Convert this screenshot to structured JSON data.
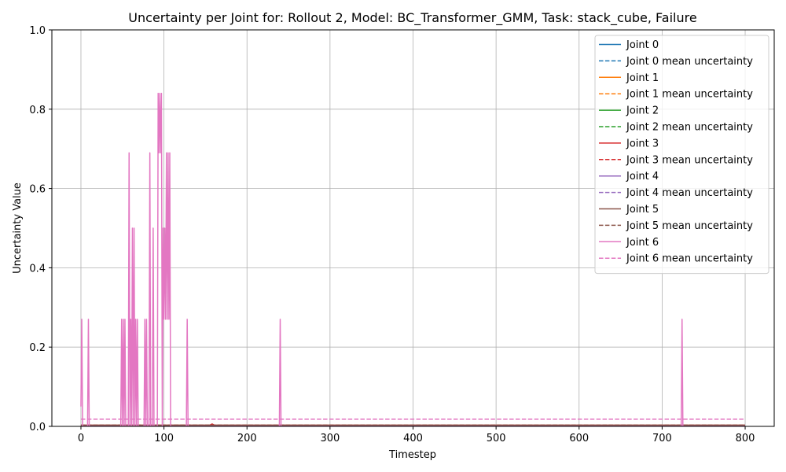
{
  "chart_data": {
    "type": "line",
    "title": "Uncertainty per Joint for: Rollout 2, Model: BC_Transformer_GMM, Task: stack_cube, Failure",
    "xlabel": "Timestep",
    "ylabel": "Uncertainty Value",
    "xlim": [
      -35,
      835
    ],
    "ylim": [
      0,
      1.0
    ],
    "x_ticks": [
      0,
      100,
      200,
      300,
      400,
      500,
      600,
      700,
      800
    ],
    "y_ticks": [
      0.0,
      0.2,
      0.4,
      0.6,
      0.8,
      1.0
    ],
    "x_tick_labels": [
      "0",
      "100",
      "200",
      "300",
      "400",
      "500",
      "600",
      "700",
      "800"
    ],
    "y_tick_labels": [
      "0.0",
      "0.2",
      "0.4",
      "0.6",
      "0.8",
      "1.0"
    ],
    "grid": true,
    "legend_position": "top-right",
    "series": [
      {
        "name": "Joint 0",
        "color": "#1f77b4",
        "style": "solid",
        "points": [
          [
            0,
            0.002
          ],
          [
            800,
            0.002
          ]
        ]
      },
      {
        "name": "Joint 0 mean uncertainty",
        "color": "#1f77b4",
        "style": "dashed",
        "points": [
          [
            0,
            0.002
          ],
          [
            800,
            0.002
          ]
        ]
      },
      {
        "name": "Joint 1",
        "color": "#ff7f0e",
        "style": "solid",
        "points": [
          [
            0,
            0.002
          ],
          [
            800,
            0.002
          ]
        ]
      },
      {
        "name": "Joint 1 mean uncertainty",
        "color": "#ff7f0e",
        "style": "dashed",
        "points": [
          [
            0,
            0.002
          ],
          [
            800,
            0.002
          ]
        ]
      },
      {
        "name": "Joint 2",
        "color": "#2ca02c",
        "style": "solid",
        "points": [
          [
            0,
            0.002
          ],
          [
            800,
            0.002
          ]
        ]
      },
      {
        "name": "Joint 2 mean uncertainty",
        "color": "#2ca02c",
        "style": "dashed",
        "points": [
          [
            0,
            0.002
          ],
          [
            800,
            0.002
          ]
        ]
      },
      {
        "name": "Joint 3",
        "color": "#d62728",
        "style": "solid",
        "points": [
          [
            0,
            0.003
          ],
          [
            155,
            0.003
          ],
          [
            158,
            0.006
          ],
          [
            161,
            0.003
          ],
          [
            800,
            0.003
          ]
        ]
      },
      {
        "name": "Joint 3 mean uncertainty",
        "color": "#d62728",
        "style": "dashed",
        "points": [
          [
            0,
            0.003
          ],
          [
            800,
            0.003
          ]
        ]
      },
      {
        "name": "Joint 4",
        "color": "#9467bd",
        "style": "solid",
        "points": [
          [
            0,
            0.002
          ],
          [
            800,
            0.002
          ]
        ]
      },
      {
        "name": "Joint 4 mean uncertainty",
        "color": "#9467bd",
        "style": "dashed",
        "points": [
          [
            0,
            0.002
          ],
          [
            800,
            0.002
          ]
        ]
      },
      {
        "name": "Joint 5",
        "color": "#8c564b",
        "style": "solid",
        "points": [
          [
            0,
            0.003
          ],
          [
            800,
            0.003
          ]
        ]
      },
      {
        "name": "Joint 5 mean uncertainty",
        "color": "#8c564b",
        "style": "dashed",
        "points": [
          [
            0,
            0.003
          ],
          [
            800,
            0.003
          ]
        ]
      },
      {
        "name": "Joint 6",
        "color": "#e377c2",
        "style": "solid",
        "points": [
          [
            0,
            0.05
          ],
          [
            1,
            0.27
          ],
          [
            2,
            0.0
          ],
          [
            8,
            0.0
          ],
          [
            9,
            0.27
          ],
          [
            10,
            0.0
          ],
          [
            48,
            0.0
          ],
          [
            49,
            0.27
          ],
          [
            50,
            0.0
          ],
          [
            51,
            0.27
          ],
          [
            52,
            0.0
          ],
          [
            53,
            0.27
          ],
          [
            54,
            0.0
          ],
          [
            57,
            0.0
          ],
          [
            58,
            0.69
          ],
          [
            59,
            0.0
          ],
          [
            60,
            0.27
          ],
          [
            61,
            0.0
          ],
          [
            62,
            0.5
          ],
          [
            63,
            0.0
          ],
          [
            64,
            0.5
          ],
          [
            65,
            0.0
          ],
          [
            66,
            0.27
          ],
          [
            67,
            0.0
          ],
          [
            68,
            0.27
          ],
          [
            69,
            0.0
          ],
          [
            76,
            0.0
          ],
          [
            77,
            0.27
          ],
          [
            78,
            0.0
          ],
          [
            79,
            0.27
          ],
          [
            80,
            0.0
          ],
          [
            82,
            0.0
          ],
          [
            83,
            0.69
          ],
          [
            84,
            0.0
          ],
          [
            86,
            0.0
          ],
          [
            87,
            0.5
          ],
          [
            88,
            0.0
          ],
          [
            92,
            0.0
          ],
          [
            93,
            0.84
          ],
          [
            94,
            0.69
          ],
          [
            95,
            0.84
          ],
          [
            96,
            0.69
          ],
          [
            97,
            0.84
          ],
          [
            98,
            0.0
          ],
          [
            99,
            0.5
          ],
          [
            100,
            0.27
          ],
          [
            101,
            0.5
          ],
          [
            102,
            0.27
          ],
          [
            103,
            0.69
          ],
          [
            104,
            0.27
          ],
          [
            105,
            0.69
          ],
          [
            106,
            0.27
          ],
          [
            107,
            0.69
          ],
          [
            108,
            0.0
          ],
          [
            127,
            0.0
          ],
          [
            128,
            0.27
          ],
          [
            129,
            0.0
          ],
          [
            239,
            0.0
          ],
          [
            240,
            0.27
          ],
          [
            241,
            0.0
          ],
          [
            723,
            0.0
          ],
          [
            724,
            0.27
          ],
          [
            725,
            0.0
          ],
          [
            800,
            0.0
          ]
        ]
      },
      {
        "name": "Joint 6 mean uncertainty",
        "color": "#e377c2",
        "style": "dashed",
        "points": [
          [
            0,
            0.018
          ],
          [
            800,
            0.018
          ]
        ]
      }
    ]
  }
}
